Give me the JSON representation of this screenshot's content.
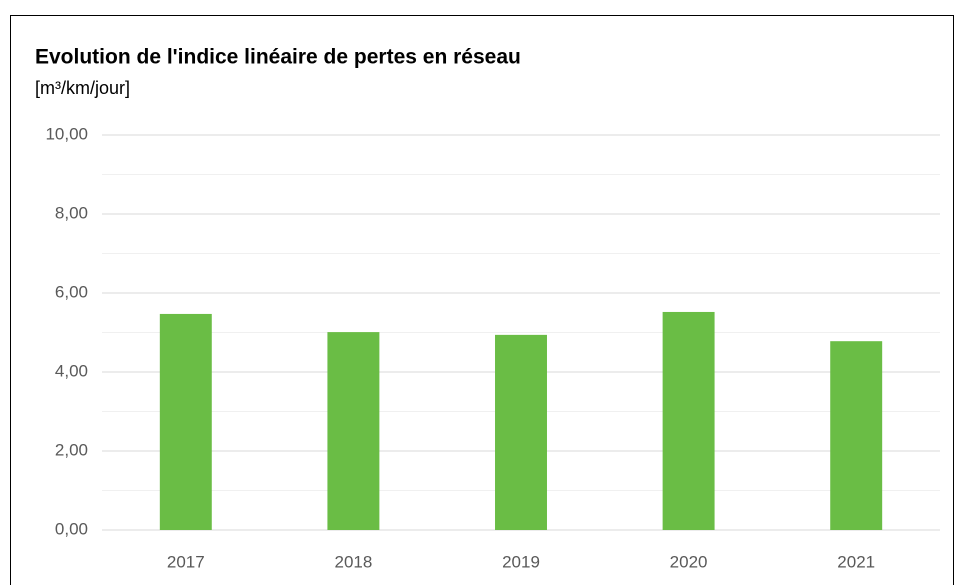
{
  "chart_data": {
    "type": "bar",
    "title": "Evolution de l'indice linéaire de pertes en réseau",
    "subtitle": "[m³/km/jour]",
    "categories": [
      "2017",
      "2018",
      "2019",
      "2020",
      "2021"
    ],
    "values": [
      5.47,
      5.01,
      4.94,
      5.52,
      4.78
    ],
    "color": "#6abd45",
    "ylim": [
      0,
      10
    ],
    "yticks": [
      {
        "value": 0,
        "label": "0,00"
      },
      {
        "value": 2,
        "label": "2,00"
      },
      {
        "value": 4,
        "label": "4,00"
      },
      {
        "value": 6,
        "label": "6,00"
      },
      {
        "value": 8,
        "label": "8,00"
      },
      {
        "value": 10,
        "label": "10,00"
      }
    ],
    "minor_yticks": [
      1,
      3,
      5,
      7,
      9
    ],
    "grid": true
  }
}
